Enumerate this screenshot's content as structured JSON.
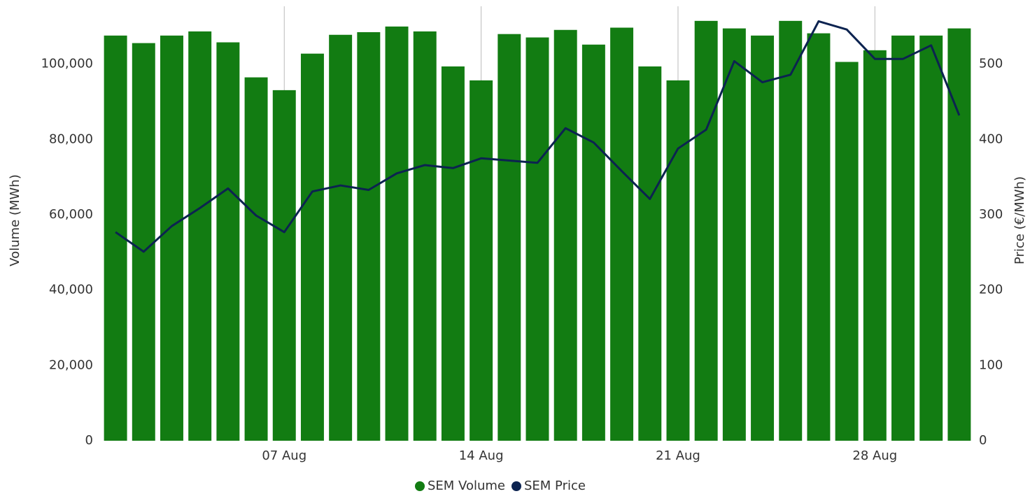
{
  "chart_data": {
    "type": "bar-line",
    "categories": [
      null,
      null,
      null,
      null,
      null,
      null,
      "07 Aug",
      null,
      null,
      null,
      null,
      null,
      null,
      "14 Aug",
      null,
      null,
      null,
      null,
      null,
      null,
      "21 Aug",
      null,
      null,
      null,
      null,
      null,
      null,
      "28 Aug",
      null,
      null,
      null
    ],
    "series": [
      {
        "name": "SEM Volume",
        "color": "#127c12",
        "type": "bar",
        "axis": "y",
        "values": [
          107600,
          105600,
          107600,
          108700,
          105800,
          96500,
          93100,
          102800,
          107800,
          108500,
          110000,
          108700,
          99400,
          95700,
          108000,
          107100,
          109100,
          105200,
          109700,
          99400,
          95700,
          111500,
          109500,
          107600,
          111500,
          108200,
          100600,
          103700,
          107600,
          107600,
          109500
        ]
      },
      {
        "name": "SEM Price",
        "color": "#0c2350",
        "type": "line",
        "axis": "y2",
        "values": [
          277,
          251,
          285,
          309,
          335,
          299,
          277,
          331,
          339,
          333,
          355,
          366,
          362,
          375,
          372,
          369,
          415,
          396,
          358,
          321,
          388,
          413,
          504,
          476,
          486,
          557,
          546,
          507,
          507,
          525,
          432
        ]
      }
    ],
    "y_label": "Volume (MWh)",
    "y2_label": "Price (€/MWh)",
    "ylim": [
      0,
      115000
    ],
    "yticks": [
      0,
      {
        "value": 20000,
        "label": "20,000"
      },
      {
        "value": 40000,
        "label": "40,000"
      },
      {
        "value": 60000,
        "label": "60,000"
      },
      {
        "value": 80000,
        "label": "80,000"
      },
      {
        "value": 100000,
        "label": "100,000"
      }
    ],
    "y2lim": [
      0,
      575
    ],
    "y2ticks": [
      0,
      100,
      200,
      300,
      400,
      500
    ],
    "grid": "x",
    "legend": "bottom"
  }
}
